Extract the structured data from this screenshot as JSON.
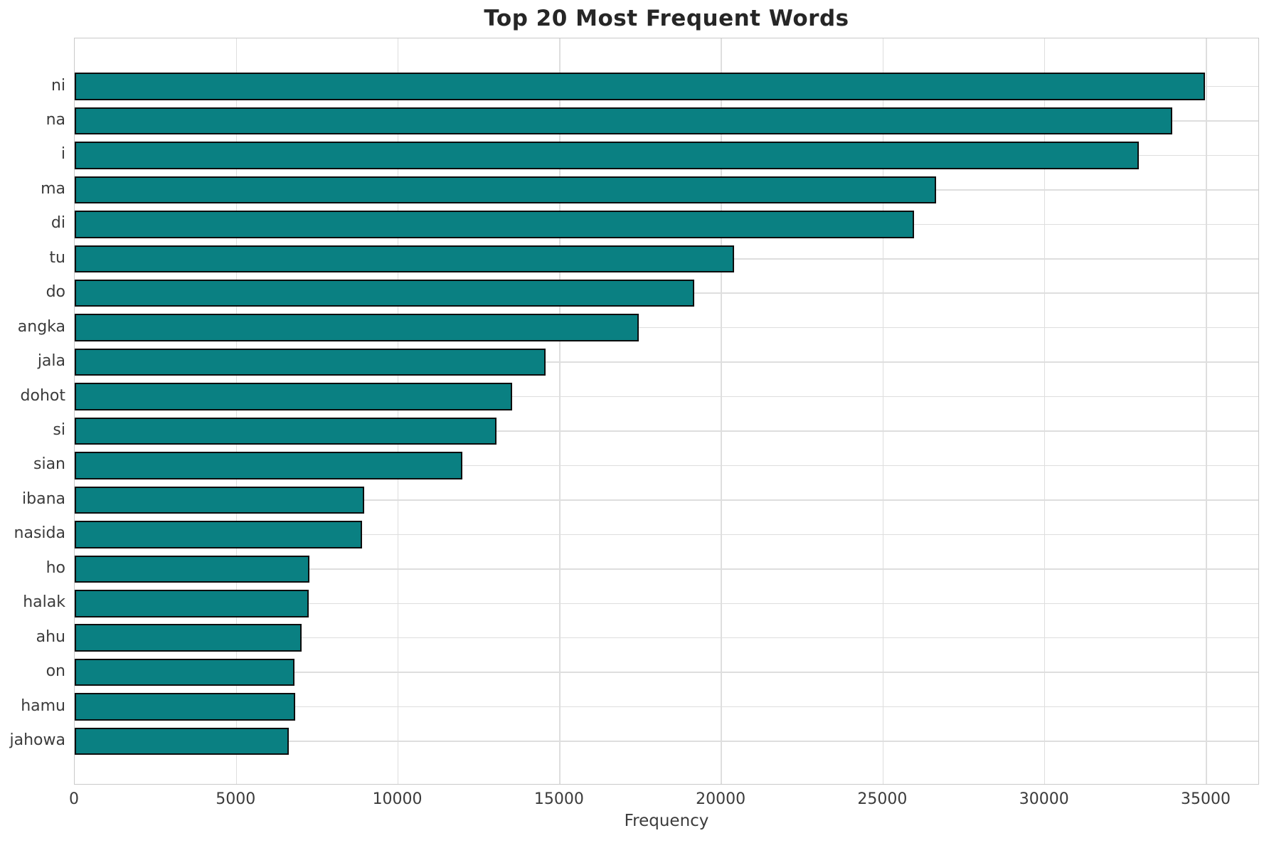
{
  "chart_data": {
    "type": "bar",
    "orientation": "horizontal",
    "title": "Top 20 Most Frequent Words",
    "xlabel": "Frequency",
    "ylabel": "",
    "categories": [
      "ni",
      "na",
      "i",
      "ma",
      "di",
      "tu",
      "do",
      "angka",
      "jala",
      "dohot",
      "si",
      "sian",
      "ibana",
      "nasida",
      "ho",
      "halak",
      "ahu",
      "on",
      "hamu",
      "jahowa"
    ],
    "values": [
      34950,
      33950,
      32900,
      26650,
      25950,
      20400,
      19150,
      17450,
      14570,
      13540,
      13040,
      11980,
      8950,
      8890,
      7250,
      7230,
      7020,
      6800,
      6810,
      6630
    ],
    "xlim": [
      0,
      36650
    ],
    "x_ticks": [
      0,
      5000,
      10000,
      15000,
      20000,
      25000,
      30000,
      35000
    ],
    "x_tick_labels": [
      "0",
      "5000",
      "10000",
      "15000",
      "20000",
      "25000",
      "30000",
      "35000"
    ],
    "grid": true,
    "legend": "none",
    "colors": {
      "bar_fill": "#0a8082",
      "bar_edge": "#0d0d0d",
      "grid": "#dedede",
      "spine": "#c9c9c9",
      "title_text": "#262626",
      "tick_text": "#3b3b3b",
      "background": "#ffffff"
    }
  }
}
